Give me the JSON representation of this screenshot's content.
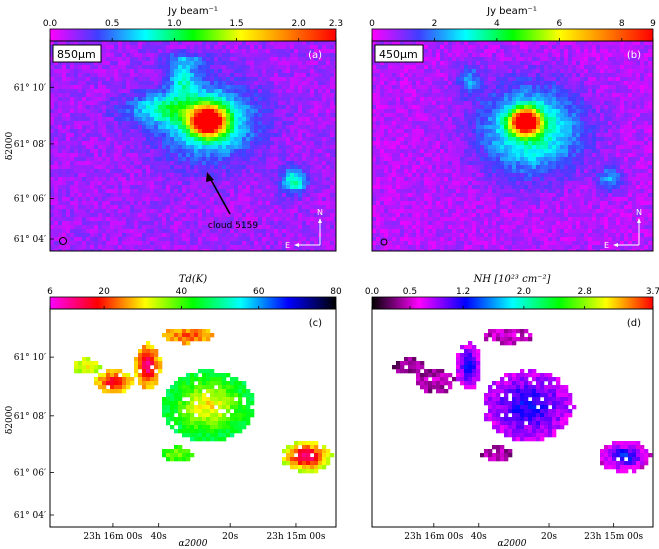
{
  "chart_data": [
    {
      "type": "heatmap",
      "panel_label": "(a)",
      "map_label": "850μm",
      "colorbar": {
        "title": "Jy beam⁻¹",
        "ticks": [
          "0.0",
          "0.5",
          "1.0",
          "1.5",
          "2.0",
          "2.3"
        ],
        "tick_values": [
          0.0,
          0.5,
          1.0,
          1.5,
          2.0,
          2.3
        ],
        "range": [
          0.0,
          2.3
        ],
        "colormap": [
          "#ff00ff",
          "#3f3fff",
          "#00ffff",
          "#00ff00",
          "#ffff00",
          "#ff8000",
          "#ff0000"
        ]
      },
      "y_ticks": [
        "61° 10′",
        "61° 08′",
        "61° 06′",
        "61° 04′"
      ],
      "ylabel": "δ2000",
      "annotation": "cloud 5159",
      "compass": {
        "north": "N",
        "east": "E"
      },
      "background": "#b03cf0",
      "sources": [
        {
          "x": 0.55,
          "y": 0.62,
          "peak": 2.3,
          "sx": 0.04,
          "sy": 0.045
        },
        {
          "x": 0.55,
          "y": 0.62,
          "peak": 0.8,
          "sx": 0.11,
          "sy": 0.12
        },
        {
          "x": 0.4,
          "y": 0.68,
          "peak": 0.55,
          "sx": 0.1,
          "sy": 0.05
        },
        {
          "x": 0.46,
          "y": 0.82,
          "peak": 0.55,
          "sx": 0.03,
          "sy": 0.05
        },
        {
          "x": 0.47,
          "y": 0.91,
          "peak": 0.35,
          "sx": 0.06,
          "sy": 0.025
        },
        {
          "x": 0.85,
          "y": 0.34,
          "peak": 0.75,
          "sx": 0.03,
          "sy": 0.04
        }
      ]
    },
    {
      "type": "heatmap",
      "panel_label": "(b)",
      "map_label": "450μm",
      "colorbar": {
        "title": "Jy beam⁻¹",
        "ticks": [
          "0",
          "2",
          "4",
          "6",
          "8",
          "9"
        ],
        "tick_values": [
          0,
          2,
          4,
          6,
          8,
          9
        ],
        "range": [
          0,
          9
        ],
        "colormap": [
          "#ff00ff",
          "#3f3fff",
          "#00ffff",
          "#00ff00",
          "#ffff00",
          "#ff8000",
          "#ff0000"
        ]
      },
      "compass": {
        "north": "N",
        "east": "E"
      },
      "background": "#5a50e6",
      "sources": [
        {
          "x": 0.54,
          "y": 0.62,
          "peak": 9.0,
          "sx": 0.035,
          "sy": 0.04
        },
        {
          "x": 0.56,
          "y": 0.58,
          "peak": 3.2,
          "sx": 0.12,
          "sy": 0.14
        },
        {
          "x": 0.34,
          "y": 0.82,
          "peak": 1.6,
          "sx": 0.03,
          "sy": 0.05
        },
        {
          "x": 0.84,
          "y": 0.35,
          "peak": 1.8,
          "sx": 0.03,
          "sy": 0.04
        }
      ]
    },
    {
      "type": "heatmap",
      "panel_label": "(c)",
      "colorbar": {
        "title": "Td(K)",
        "ticks": [
          "6",
          "20",
          "40",
          "60",
          "80"
        ],
        "tick_values": [
          6,
          20,
          40,
          60,
          80
        ],
        "range": [
          6,
          80
        ],
        "colormap": [
          "#ff00ff",
          "#ff0000",
          "#ffff00",
          "#00ff00",
          "#00ffff",
          "#0000ff",
          "#000000"
        ]
      },
      "y_ticks": [
        "61° 10′",
        "61° 08′",
        "61° 06′",
        "61° 04′"
      ],
      "x_ticks": [
        "23h 16m 00s",
        "40s",
        "20s",
        "23h 15m 00s"
      ],
      "xlabel": "α2000",
      "ylabel": "δ2000",
      "background": "#ffffff",
      "sources": [
        {
          "x": 0.55,
          "y": 0.55,
          "peak": 15,
          "sx": 0.035,
          "sy": 0.035,
          "edge": 45
        },
        {
          "x": 0.55,
          "y": 0.56,
          "peak": 30,
          "sx": 0.09,
          "sy": 0.09,
          "edge": 48
        },
        {
          "x": 0.34,
          "y": 0.74,
          "peak": 12,
          "sx": 0.025,
          "sy": 0.06,
          "edge": 30
        },
        {
          "x": 0.48,
          "y": 0.88,
          "peak": 22,
          "sx": 0.05,
          "sy": 0.02,
          "edge": 28
        },
        {
          "x": 0.22,
          "y": 0.67,
          "peak": 16,
          "sx": 0.04,
          "sy": 0.03,
          "edge": 32
        },
        {
          "x": 0.13,
          "y": 0.74,
          "peak": 30,
          "sx": 0.03,
          "sy": 0.02,
          "edge": 35
        },
        {
          "x": 0.44,
          "y": 0.34,
          "peak": 36,
          "sx": 0.03,
          "sy": 0.02,
          "edge": 42
        },
        {
          "x": 0.89,
          "y": 0.33,
          "peak": 10,
          "sx": 0.05,
          "sy": 0.04,
          "edge": 36
        }
      ]
    },
    {
      "type": "heatmap",
      "panel_label": "(d)",
      "colorbar": {
        "title": "NH [10²³ cm⁻²]",
        "ticks": [
          "0.0",
          "0.5",
          "1.2",
          "2.0",
          "2.8",
          "3.7"
        ],
        "tick_values": [
          0.0,
          0.5,
          1.2,
          2.0,
          2.8,
          3.7
        ],
        "range": [
          0.0,
          3.7
        ],
        "colormap": [
          "#000000",
          "#ff00ff",
          "#0000ff",
          "#00ffff",
          "#00ff00",
          "#ffff00",
          "#ff0000"
        ]
      },
      "x_ticks": [
        "23h 16m 00s",
        "40s",
        "20s",
        "23h 15m 00s"
      ],
      "xlabel": "α2000",
      "background": "#ffffff",
      "sources": [
        {
          "x": 0.55,
          "y": 0.55,
          "peak": 3.7,
          "sx": 0.03,
          "sy": 0.03,
          "edge": 0.8
        },
        {
          "x": 0.55,
          "y": 0.56,
          "peak": 1.2,
          "sx": 0.09,
          "sy": 0.09,
          "edge": 0.7
        },
        {
          "x": 0.34,
          "y": 0.74,
          "peak": 1.3,
          "sx": 0.025,
          "sy": 0.06,
          "edge": 0.6
        },
        {
          "x": 0.48,
          "y": 0.88,
          "peak": 0.6,
          "sx": 0.05,
          "sy": 0.02,
          "edge": 0.4
        },
        {
          "x": 0.22,
          "y": 0.67,
          "peak": 0.5,
          "sx": 0.04,
          "sy": 0.03,
          "edge": 0.35
        },
        {
          "x": 0.13,
          "y": 0.74,
          "peak": 0.4,
          "sx": 0.03,
          "sy": 0.02,
          "edge": 0.3
        },
        {
          "x": 0.44,
          "y": 0.34,
          "peak": 0.5,
          "sx": 0.03,
          "sy": 0.02,
          "edge": 0.35
        },
        {
          "x": 0.89,
          "y": 0.33,
          "peak": 1.3,
          "sx": 0.05,
          "sy": 0.04,
          "edge": 0.5
        }
      ]
    }
  ]
}
